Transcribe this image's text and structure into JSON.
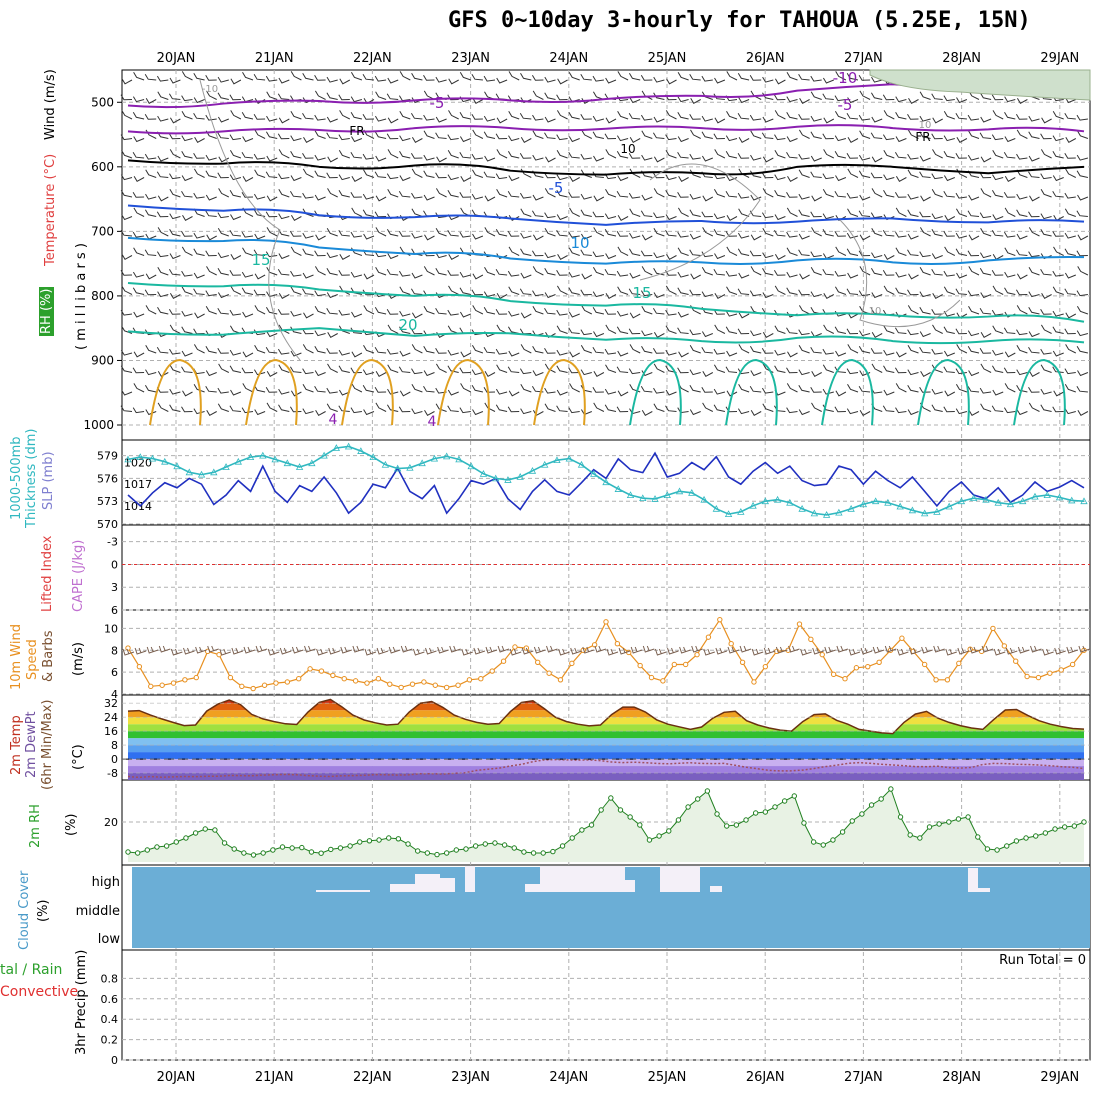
{
  "title": "GFS 0~10day 3-hourly for TAHOUA (5.25E, 15N)",
  "colors": {
    "grid": "#b0b0b0",
    "purple": "#8a1fb0",
    "black": "#000000",
    "blue_dark": "#2050d8",
    "blue_light": "#1a8ad8",
    "teal": "#1ab8a0",
    "orange": "#e0a020",
    "slp": "#2030c0",
    "thickness": "#30b8c0",
    "li_zero": "#e03030",
    "wind_speed": "#e89020",
    "barb": "#7a6050",
    "rh_line": "#208020",
    "rh_fill": "#e8f2e4",
    "rh_fill_dark": "#c0d4bc",
    "cloud_bg": "#6baed6",
    "cloud_gap": "#f4f0f8"
  },
  "chart_data": [
    {
      "type": "line",
      "panel": "upper-air",
      "title": "Wind (m/s) / Temperature (°C) / RH (%)",
      "ylabel": "m i l l i b a r s",
      "yticks": [
        500,
        600,
        700,
        800,
        900,
        1000
      ],
      "ylim": [
        1000,
        450
      ],
      "x_labels": [
        "20JAN",
        "21JAN",
        "22JAN",
        "23JAN",
        "24JAN",
        "25JAN",
        "26JAN",
        "27JAN",
        "28JAN",
        "29JAN"
      ],
      "contour_labels": [
        "-10",
        "-5",
        "FR",
        "-5",
        "10",
        "15",
        "20",
        "15",
        "10",
        "-10",
        "-5",
        "FR",
        "10",
        "10",
        "4",
        "4"
      ],
      "isotherms": [
        {
          "label": "-10",
          "color": "purple",
          "pressure": [
            505,
            502,
            498,
            497,
            497,
            495,
            490,
            482,
            472,
            468,
            470
          ]
        },
        {
          "label": "-5",
          "color": "purple",
          "pressure": [
            545,
            545,
            543,
            540,
            540,
            541,
            540,
            538,
            540,
            542,
            545
          ]
        },
        {
          "label": "FR",
          "color": "black",
          "pressure": [
            590,
            595,
            600,
            598,
            606,
            612,
            610,
            600,
            600,
            610,
            600
          ]
        },
        {
          "label": "5",
          "color": "blue_dark",
          "pressure": [
            660,
            668,
            675,
            678,
            680,
            690,
            684,
            685,
            680,
            686,
            685
          ]
        },
        {
          "label": "10",
          "color": "blue_light",
          "pressure": [
            710,
            715,
            725,
            735,
            742,
            750,
            748,
            745,
            748,
            745,
            740
          ]
        },
        {
          "label": "15",
          "color": "teal",
          "pressure": [
            780,
            785,
            790,
            800,
            808,
            815,
            820,
            830,
            830,
            832,
            840
          ]
        },
        {
          "label": "20",
          "color": "teal",
          "pressure": [
            855,
            860,
            850,
            862,
            858,
            868,
            870,
            865,
            870,
            870,
            872
          ]
        }
      ]
    },
    {
      "type": "line",
      "panel": "thickness-slp",
      "ylabel_left": "1000-500mb Thickness (dm)",
      "ylabel_right": "SLP (mb)",
      "thickness_ticks": [
        570,
        573,
        576,
        579
      ],
      "slp_ticks": [
        1014,
        1017,
        1020
      ],
      "series": [
        {
          "name": "SLP (mb)",
          "color": "slp",
          "values": [
            1015.5,
            1014.0,
            1015.8,
            1017.2,
            1016.5,
            1017.8,
            1017.0,
            1014.2,
            1015.5,
            1017.5,
            1016.0,
            1019.5,
            1016.0,
            1014.5,
            1016.8,
            1016.0,
            1018.0,
            1015.8,
            1013.0,
            1014.5,
            1017.0,
            1016.5,
            1019.2,
            1016.0,
            1015.0,
            1016.8,
            1013.0,
            1015.0,
            1017.5,
            1017.0,
            1017.8,
            1015.0,
            1013.5,
            1016.0,
            1017.6,
            1016.0,
            1015.5,
            1017.2,
            1019.0,
            1017.8,
            1020.5,
            1019.0,
            1018.6,
            1021.3,
            1018.0,
            1018.5,
            1020.0,
            1019.0,
            1020.8,
            1018.0,
            1017.0,
            1018.8,
            1020.0,
            1018.5,
            1019.5,
            1017.5,
            1016.8,
            1017.0,
            1019.5,
            1019.0,
            1017.0,
            1018.8,
            1017.5,
            1016.5,
            1018.0,
            1016.0,
            1014.0,
            1016.0,
            1017.3,
            1015.5,
            1015.0,
            1016.5,
            1014.5,
            1015.5,
            1017.3,
            1016.0,
            1016.6,
            1017.5,
            1016.5
          ]
        },
        {
          "name": "Thickness (dm)",
          "color": "thickness",
          "values": [
            578.5,
            578.8,
            578.6,
            578.2,
            577.6,
            576.8,
            576.5,
            576.8,
            577.5,
            578.2,
            578.8,
            579.0,
            578.5,
            578.0,
            577.5,
            578.0,
            579.0,
            580.0,
            580.2,
            579.6,
            578.8,
            577.8,
            577.3,
            577.4,
            578.0,
            578.6,
            578.9,
            578.5,
            577.6,
            576.6,
            576.0,
            575.8,
            576.2,
            577.0,
            577.8,
            578.4,
            578.6,
            577.8,
            576.6,
            575.5,
            574.6,
            573.8,
            573.4,
            573.3,
            573.8,
            574.3,
            574.1,
            573.2,
            572.0,
            571.3,
            571.6,
            572.4,
            573.0,
            573.2,
            572.8,
            572.0,
            571.4,
            571.2,
            571.5,
            572.0,
            572.6,
            573.0,
            572.8,
            572.3,
            571.8,
            571.4,
            571.6,
            572.3,
            573.0,
            573.4,
            573.2,
            572.8,
            572.6,
            573.0,
            573.6,
            573.8,
            573.5,
            573.1,
            573.0
          ]
        }
      ]
    },
    {
      "type": "line",
      "panel": "stability",
      "ylabel_left": "Lifted Index",
      "ylabel_right": "CAPE (J/kg)",
      "yticks": [
        -3,
        0,
        3,
        6
      ],
      "reference_line": 0
    },
    {
      "type": "line",
      "panel": "10m-wind",
      "ylabel": "10m Wind Speed & Barbs (m/s)",
      "yticks": [
        4,
        6,
        8,
        10
      ],
      "ylim": [
        4,
        11.5
      ],
      "series": [
        {
          "name": "Wind speed",
          "color": "wind_speed",
          "values": [
            8.2,
            6.5,
            4.7,
            4.8,
            5.0,
            5.3,
            5.5,
            7.9,
            7.6,
            5.5,
            4.7,
            4.5,
            4.8,
            5.0,
            5.1,
            5.4,
            6.3,
            6.1,
            5.7,
            5.4,
            5.2,
            5.0,
            5.4,
            4.9,
            4.6,
            4.9,
            5.1,
            4.8,
            4.6,
            4.8,
            5.3,
            5.4,
            6.1,
            7.0,
            8.3,
            8.2,
            6.9,
            5.9,
            5.3,
            6.8,
            8.0,
            8.5,
            10.6,
            8.6,
            7.8,
            6.6,
            5.5,
            5.2,
            6.7,
            6.7,
            7.6,
            9.2,
            10.8,
            8.6,
            6.9,
            5.1,
            6.5,
            7.9,
            8.0,
            10.4,
            9.0,
            7.6,
            5.8,
            5.4,
            6.4,
            6.5,
            6.9,
            8.0,
            9.1,
            7.9,
            6.7,
            5.3,
            5.3,
            6.8,
            8.1,
            7.9,
            10.0,
            8.4,
            7.0,
            5.6,
            5.5,
            5.9,
            6.2,
            6.7,
            8.0
          ]
        }
      ]
    },
    {
      "type": "area",
      "panel": "2m-temp",
      "ylabel": "2m Temp / 2m DewPt (6hr Min/Max) (°C)",
      "yticks": [
        32,
        24,
        16,
        8,
        0,
        -8
      ],
      "ylim": [
        -12,
        35
      ],
      "series": [
        {
          "name": "2m Temp",
          "values": [
            27.5,
            27.8,
            25.2,
            23.0,
            21.0,
            19.2,
            19.5,
            27.5,
            31.5,
            33.8,
            31.2,
            25.6,
            23.0,
            21.5,
            20.2,
            19.8,
            27.0,
            32.5,
            34.2,
            30.0,
            25.2,
            22.4,
            20.8,
            19.5,
            20.0,
            27.0,
            32.0,
            33.0,
            29.6,
            25.2,
            22.8,
            21.0,
            20.0,
            20.4,
            27.2,
            32.4,
            33.4,
            29.0,
            24.0,
            21.5,
            20.0,
            19.0,
            19.5,
            25.5,
            29.8,
            29.8,
            27.0,
            22.5,
            20.0,
            18.5,
            17.0,
            18.4,
            23.4,
            26.8,
            27.4,
            22.0,
            19.5,
            17.8,
            16.6,
            16.0,
            21.5,
            25.5,
            25.9,
            22.2,
            20.0,
            17.0,
            16.0,
            15.0,
            14.6,
            21.0,
            25.8,
            27.3,
            23.5,
            21.0,
            19.2,
            17.8,
            17.0,
            22.8,
            28.1,
            28.4,
            25.0,
            22.0,
            20.0,
            18.6,
            17.5,
            17.2
          ]
        },
        {
          "name": "2m DewPt",
          "values": [
            -10.0,
            -10.5,
            -10.0,
            -10.4,
            -10.2,
            -10.0,
            -10.1,
            -9.9,
            -9.8,
            -9.4,
            -9.5,
            -9.6,
            -9.2,
            -9.0,
            -8.8,
            -9.0,
            -9.5,
            -9.8,
            -10.0,
            -9.6,
            -9.5,
            -9.3,
            -8.9,
            -9.0,
            -9.2,
            -9.0,
            -8.4,
            -8.4,
            -8.6,
            -8.2,
            -7.8,
            -6.5,
            -5.8,
            -5.2,
            -4.0,
            -3.0,
            -1.5,
            -0.5,
            -0.3,
            -0.5,
            -0.6,
            -0.5,
            -0.9,
            -1.7,
            -2.0,
            -1.8,
            -2.1,
            -2.5,
            -2.7,
            -2.4,
            -2.1,
            -2.5,
            -2.6,
            -2.5,
            -3.6,
            -4.7,
            -5.6,
            -6.5,
            -6.8,
            -6.7,
            -6.3,
            -5.4,
            -4.3,
            -3.5,
            -2.5,
            -2.0,
            -2.4,
            -3.0,
            -3.4,
            -3.8,
            -4.3,
            -4.4,
            -4.1,
            -4.9,
            -5.2,
            -4.8,
            -3.1,
            -2.5,
            -2.6,
            -3.0,
            -3.1,
            -3.4,
            -3.8,
            -4.4,
            -4.7,
            -5.4
          ]
        }
      ]
    },
    {
      "type": "area",
      "panel": "2m-rh",
      "ylabel": "2m RH (%)",
      "yticks": [
        20
      ],
      "ylim": [
        0,
        40
      ],
      "series": [
        {
          "name": "2m RH",
          "values": [
            5.0,
            4.5,
            6.0,
            7.5,
            8.0,
            10.0,
            12.0,
            14.5,
            16.5,
            16.0,
            9.5,
            6.5,
            4.5,
            3.5,
            4.5,
            6.0,
            7.5,
            7.0,
            7.2,
            5.0,
            4.4,
            6.3,
            7.0,
            8.0,
            10.0,
            10.6,
            11.0,
            12.0,
            11.6,
            9.0,
            5.5,
            4.5,
            3.7,
            4.5,
            6.0,
            6.5,
            8.0,
            9.0,
            9.5,
            8.5,
            7.0,
            5.0,
            4.5,
            4.5,
            5.2,
            8.0,
            12.0,
            16.0,
            18.5,
            26.0,
            32.0,
            26.0,
            22.5,
            18.5,
            11.0,
            13.0,
            15.5,
            21.0,
            27.5,
            31.5,
            35.5,
            24.0,
            18.0,
            18.5,
            21.0,
            24.5,
            25.0,
            27.5,
            30.5,
            33.0,
            19.5,
            10.0,
            8.5,
            11.0,
            15.0,
            20.5,
            24.0,
            28.5,
            31.5,
            36.5,
            22.5,
            13.5,
            12.0,
            17.5,
            19.0,
            20.0,
            21.5,
            22.5,
            12.5,
            6.5,
            6.0,
            8.0,
            10.5,
            12.0,
            13.0,
            14.5,
            16.5,
            17.5,
            18.0,
            20.0
          ]
        }
      ]
    },
    {
      "type": "bar",
      "panel": "cloud-cover",
      "ylabel": "Cloud Cover (%)",
      "ytick_labels": [
        "high",
        "middle",
        "low"
      ]
    },
    {
      "type": "bar",
      "panel": "precip",
      "ylabel_left": "Total / Rain",
      "ylabel_left2": "Convective",
      "ylabel": "3hr Precip (mm)",
      "yticks": [
        0,
        0.2,
        0.4,
        0.6,
        0.8
      ],
      "ylim": [
        0,
        1
      ],
      "annotation": "Run Total = 0"
    }
  ],
  "axis_labels": {
    "upper_wind": "Wind (m/s)",
    "upper_temp": "Temperature (°C)",
    "upper_rh": "RH (%)",
    "upper_mb": "( m i l l i b a r s )",
    "thick1": "1000-500mb",
    "thick2": "Thickness (dm)",
    "slp": "SLP (mb)",
    "li": "Lifted Index",
    "cape": "CAPE (J/kg)",
    "wind10_1": "10m Wind",
    "wind10_2": "Speed",
    "wind10_3": "& Barbs",
    "wind10_unit": "(m/s)",
    "temp_1": "2m Temp",
    "temp_2": "2m DewPt",
    "temp_3": "(6hr Min/Max)",
    "temp_unit": "(°C)",
    "rh2m": "2m RH",
    "rh2m_unit": "(%)",
    "cloud": "Cloud Cover",
    "cloud_unit": "(%)",
    "precip_total": "tal / Rain",
    "precip_conv": "Convective",
    "precip_unit": "3hr Precip (mm)"
  }
}
